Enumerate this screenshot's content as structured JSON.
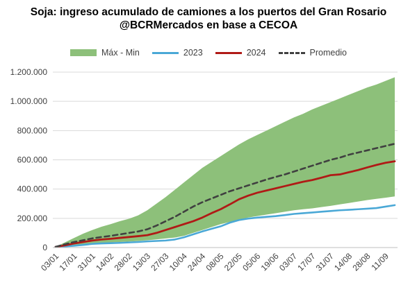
{
  "chart_data": {
    "type": "line",
    "title": "Soja: ingreso acumulado de camiones a los puertos del Gran Rosario",
    "subtitle": "@BCRMercados en base a CECOA",
    "legend_position": "top",
    "grid": true,
    "ylim": [
      0,
      1200000
    ],
    "y_ticks": [
      "0",
      "200.000",
      "400.000",
      "600.000",
      "800.000",
      "1.000.000",
      "1.200.000"
    ],
    "y_tick_values": [
      0,
      200000,
      400000,
      600000,
      800000,
      1000000,
      1200000
    ],
    "x_tick_labels": [
      "03/01",
      "17/01",
      "31/01",
      "14/02",
      "28/02",
      "13/03",
      "27/03",
      "10/04",
      "24/04",
      "08/05",
      "22/05",
      "05/06",
      "19/06",
      "03/07",
      "17/07",
      "31/07",
      "14/08",
      "28/08",
      "11/09"
    ],
    "x": [
      "03/01",
      "10/01",
      "17/01",
      "24/01",
      "31/01",
      "07/02",
      "14/02",
      "21/02",
      "28/02",
      "06/03",
      "13/03",
      "20/03",
      "27/03",
      "03/04",
      "10/04",
      "17/04",
      "24/04",
      "01/05",
      "08/05",
      "15/05",
      "22/05",
      "29/05",
      "05/06",
      "12/06",
      "19/06",
      "26/06",
      "03/07",
      "10/07",
      "17/07",
      "24/07",
      "31/07",
      "07/08",
      "14/08",
      "21/08",
      "28/08",
      "04/09",
      "11/09",
      "18/09"
    ],
    "colors": {
      "range": "#8dc07a",
      "s2023": "#4aa8d6",
      "s2024": "#b01a16",
      "promedio": "#404040"
    },
    "range": {
      "name": "Máx - Min",
      "max": [
        5000,
        35000,
        65000,
        95000,
        120000,
        142000,
        160000,
        180000,
        197000,
        220000,
        255000,
        300000,
        345000,
        395000,
        445000,
        495000,
        545000,
        585000,
        625000,
        665000,
        705000,
        740000,
        770000,
        800000,
        830000,
        860000,
        890000,
        915000,
        945000,
        970000,
        995000,
        1020000,
        1045000,
        1070000,
        1095000,
        1115000,
        1140000,
        1165000
      ],
      "min": [
        5000,
        10000,
        15000,
        20000,
        25000,
        30000,
        35000,
        38000,
        41000,
        45000,
        50000,
        56000,
        62000,
        68000,
        80000,
        100000,
        120000,
        140000,
        160000,
        175000,
        190000,
        205000,
        215000,
        225000,
        235000,
        245000,
        255000,
        262000,
        268000,
        277000,
        285000,
        295000,
        305000,
        315000,
        325000,
        333000,
        341000,
        350000
      ]
    },
    "series": [
      {
        "name": "2023",
        "values": [
          5000,
          8000,
          12000,
          18000,
          25000,
          28000,
          30000,
          32000,
          35000,
          38000,
          42000,
          45000,
          48000,
          55000,
          70000,
          90000,
          110000,
          128000,
          145000,
          170000,
          188000,
          198000,
          205000,
          210000,
          215000,
          222000,
          230000,
          235000,
          240000,
          245000,
          250000,
          255000,
          258000,
          262000,
          266000,
          270000,
          280000,
          290000
        ]
      },
      {
        "name": "2024",
        "values": [
          5000,
          15000,
          28000,
          38000,
          48000,
          55000,
          60000,
          66000,
          72000,
          78000,
          85000,
          100000,
          120000,
          140000,
          160000,
          180000,
          205000,
          235000,
          262000,
          295000,
          330000,
          355000,
          375000,
          390000,
          405000,
          420000,
          435000,
          450000,
          462000,
          478000,
          495000,
          500000,
          515000,
          530000,
          548000,
          565000,
          580000,
          590000
        ]
      },
      {
        "name": "Promedio",
        "values": [
          5000,
          22000,
          38000,
          50000,
          63000,
          72000,
          80000,
          90000,
          100000,
          110000,
          125000,
          150000,
          180000,
          210000,
          245000,
          280000,
          310000,
          335000,
          360000,
          385000,
          405000,
          425000,
          445000,
          465000,
          483000,
          500000,
          520000,
          540000,
          560000,
          580000,
          600000,
          615000,
          635000,
          650000,
          665000,
          680000,
          695000,
          710000
        ]
      }
    ]
  }
}
